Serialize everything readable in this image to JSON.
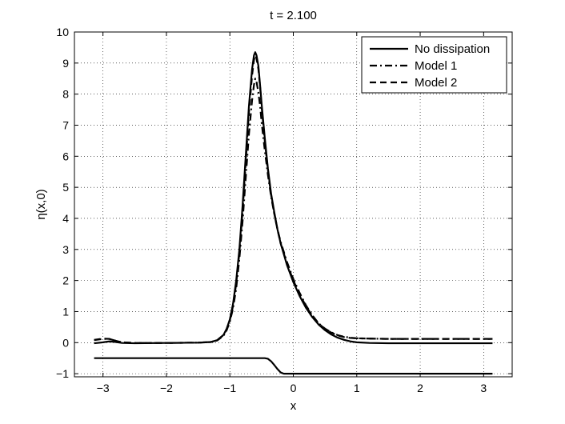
{
  "chart_data": {
    "type": "line",
    "title": "t = 2.100",
    "xlabel": "x",
    "ylabel": "η(x,0)",
    "xlim": [
      -3.45,
      3.45
    ],
    "ylim": [
      -1.1,
      10
    ],
    "xticks": [
      -3,
      -2,
      -1,
      0,
      1,
      2,
      3
    ],
    "xtick_labels": [
      "−3",
      "−2",
      "−1",
      "0",
      "1",
      "2",
      "3"
    ],
    "yticks": [
      -1,
      0,
      1,
      2,
      3,
      4,
      5,
      6,
      7,
      8,
      9,
      10
    ],
    "ytick_labels": [
      "−1",
      "0",
      "1",
      "2",
      "3",
      "4",
      "5",
      "6",
      "7",
      "8",
      "9",
      "10"
    ],
    "grid": true,
    "legend_position": "top-right",
    "series": [
      {
        "name": "No dissipation",
        "style": "solid",
        "color": "#000000",
        "x": [
          -3.14,
          -3.0,
          -2.9,
          -2.8,
          -2.7,
          -2.5,
          -2.0,
          -1.5,
          -1.3,
          -1.2,
          -1.1,
          -1.05,
          -1.0,
          -0.95,
          -0.9,
          -0.85,
          -0.8,
          -0.75,
          -0.7,
          -0.65,
          -0.62,
          -0.6,
          -0.58,
          -0.55,
          -0.52,
          -0.5,
          -0.45,
          -0.4,
          -0.35,
          -0.3,
          -0.25,
          -0.2,
          -0.1,
          0.0,
          0.1,
          0.2,
          0.3,
          0.4,
          0.5,
          0.6,
          0.7,
          0.8,
          0.9,
          1.0,
          1.2,
          1.5,
          2.0,
          2.5,
          3.0,
          3.14
        ],
        "y": [
          -0.02,
          0.01,
          0.04,
          0.02,
          -0.01,
          -0.02,
          -0.01,
          0.0,
          0.02,
          0.08,
          0.25,
          0.45,
          0.75,
          1.25,
          2.0,
          3.0,
          4.4,
          6.0,
          7.6,
          8.8,
          9.25,
          9.35,
          9.25,
          8.9,
          8.2,
          7.7,
          6.6,
          5.6,
          4.8,
          4.2,
          3.65,
          3.2,
          2.5,
          1.95,
          1.5,
          1.12,
          0.82,
          0.58,
          0.4,
          0.26,
          0.16,
          0.09,
          0.04,
          0.01,
          -0.01,
          -0.02,
          -0.02,
          -0.02,
          -0.02,
          -0.02
        ]
      },
      {
        "name": "Model 1",
        "style": "dashdot",
        "color": "#000000",
        "x": [
          -3.14,
          -3.0,
          -2.9,
          -2.8,
          -2.7,
          -2.5,
          -2.0,
          -1.5,
          -1.3,
          -1.2,
          -1.1,
          -1.05,
          -1.0,
          -0.95,
          -0.9,
          -0.85,
          -0.8,
          -0.75,
          -0.7,
          -0.65,
          -0.62,
          -0.6,
          -0.58,
          -0.55,
          -0.52,
          -0.5,
          -0.45,
          -0.4,
          -0.35,
          -0.3,
          -0.25,
          -0.2,
          -0.1,
          0.0,
          0.1,
          0.2,
          0.3,
          0.4,
          0.5,
          0.6,
          0.7,
          0.8,
          0.9,
          1.0,
          1.2,
          1.5,
          2.0,
          2.5,
          3.0,
          3.14
        ],
        "y": [
          0.08,
          0.12,
          0.12,
          0.06,
          0.01,
          -0.01,
          -0.01,
          0.0,
          0.02,
          0.07,
          0.22,
          0.4,
          0.68,
          1.1,
          1.75,
          2.7,
          3.9,
          5.3,
          6.7,
          7.8,
          8.3,
          8.5,
          8.4,
          8.05,
          7.55,
          7.1,
          6.2,
          5.4,
          4.7,
          4.15,
          3.65,
          3.25,
          2.6,
          2.05,
          1.6,
          1.2,
          0.88,
          0.62,
          0.45,
          0.33,
          0.24,
          0.19,
          0.16,
          0.14,
          0.13,
          0.12,
          0.12,
          0.12,
          0.12,
          0.12
        ]
      },
      {
        "name": "Model 2",
        "style": "dashed",
        "color": "#000000",
        "x": [
          -3.14,
          -3.0,
          -2.9,
          -2.8,
          -2.7,
          -2.5,
          -2.0,
          -1.5,
          -1.3,
          -1.2,
          -1.1,
          -1.05,
          -1.0,
          -0.95,
          -0.9,
          -0.85,
          -0.8,
          -0.75,
          -0.7,
          -0.65,
          -0.62,
          -0.6,
          -0.58,
          -0.55,
          -0.52,
          -0.5,
          -0.45,
          -0.4,
          -0.35,
          -0.3,
          -0.25,
          -0.2,
          -0.1,
          0.0,
          0.1,
          0.2,
          0.3,
          0.4,
          0.5,
          0.6,
          0.7,
          0.8,
          0.9,
          1.0,
          1.2,
          1.5,
          2.0,
          2.5,
          3.0,
          3.14
        ],
        "y": [
          0.09,
          0.13,
          0.12,
          0.06,
          0.01,
          -0.01,
          -0.01,
          0.0,
          0.02,
          0.08,
          0.24,
          0.43,
          0.72,
          1.18,
          1.9,
          2.9,
          4.2,
          5.8,
          7.4,
          8.6,
          9.1,
          9.25,
          9.15,
          8.8,
          8.15,
          7.6,
          6.5,
          5.55,
          4.75,
          4.15,
          3.65,
          3.2,
          2.55,
          2.0,
          1.56,
          1.17,
          0.86,
          0.61,
          0.44,
          0.32,
          0.23,
          0.18,
          0.15,
          0.14,
          0.13,
          0.12,
          0.12,
          0.12,
          0.12,
          0.12
        ]
      },
      {
        "name": "",
        "style": "solid",
        "color": "#000000",
        "x": [
          -3.14,
          -0.45,
          -0.4,
          -0.35,
          -0.3,
          -0.25,
          -0.2,
          -0.15,
          3.14
        ],
        "y": [
          -0.5,
          -0.5,
          -0.52,
          -0.6,
          -0.72,
          -0.85,
          -0.96,
          -1.0,
          -1.0
        ]
      }
    ]
  }
}
